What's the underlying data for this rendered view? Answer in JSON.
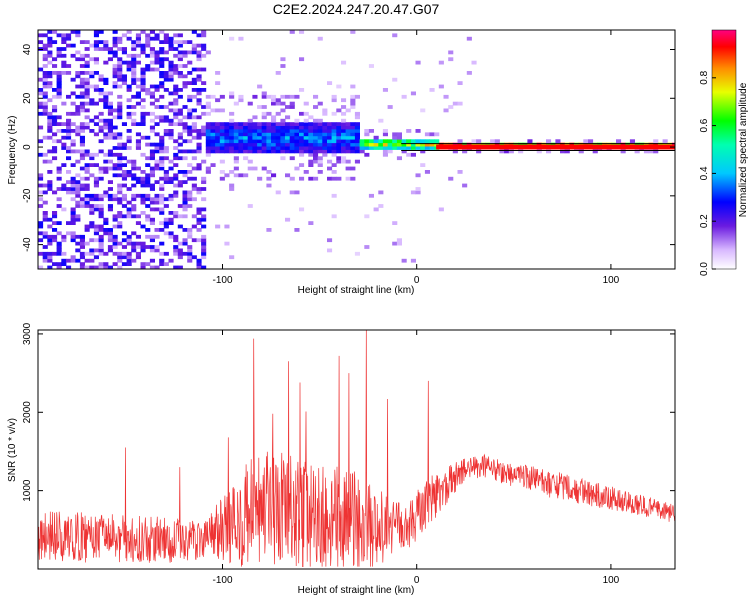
{
  "figure": {
    "title": "C2E2.2024.247.20.47.G07"
  },
  "chart_data": [
    {
      "type": "heatmap",
      "title": "C2E2.2024.247.20.47.G07",
      "xlabel": "Height of straight line (km)",
      "ylabel": "Frequency (Hz)",
      "xlim": [
        -195,
        133
      ],
      "ylim": [
        -50,
        48
      ],
      "x_ticks": [
        -100,
        0,
        100
      ],
      "y_ticks": [
        -40,
        -20,
        0,
        20,
        40
      ],
      "colorbar": {
        "label": "Normalized spectral amplitude",
        "range": [
          0,
          1
        ],
        "ticks": [
          0.0,
          0.2,
          0.4,
          0.6,
          0.8
        ]
      },
      "features": [
        {
          "region": "noise",
          "x_range": [
            -195,
            -110
          ],
          "freq_range": [
            -50,
            48
          ],
          "amplitude": 0.15
        },
        {
          "region": "signal_onset",
          "x_range": [
            -110,
            -30
          ],
          "freq_center": 3,
          "freq_halfwidth": 6,
          "amplitude": 0.35
        },
        {
          "region": "signal_transition",
          "x_range": [
            -30,
            10
          ],
          "freq_center": 0.5,
          "freq_halfwidth": 2,
          "amplitude": 0.7
        },
        {
          "region": "signal_stable",
          "x_range": [
            10,
            133
          ],
          "freq_center": 0,
          "freq_halfwidth": 1,
          "amplitude": 0.95
        }
      ],
      "grid": false
    },
    {
      "type": "line",
      "xlabel": "Height of straight line (km)",
      "ylabel": "SNR (10 * v/v)",
      "xlim": [
        -195,
        133
      ],
      "ylim": [
        0,
        3050
      ],
      "x_ticks": [
        -100,
        0,
        100
      ],
      "y_ticks": [
        1000,
        2000,
        3000
      ],
      "series": [
        {
          "color": "#ee3333",
          "envelope": {
            "x": [
              -195,
              -170,
              -140,
              -115,
              -105,
              -95,
              -85,
              -75,
              -65,
              -55,
              -45,
              -35,
              -25,
              -15,
              -5,
              5,
              15,
              25,
              35,
              50,
              70,
              90,
              110,
              133
            ],
            "mean": [
              420,
              400,
              380,
              360,
              450,
              560,
              700,
              720,
              700,
              640,
              620,
              600,
              560,
              520,
              520,
              850,
              1050,
              1280,
              1310,
              1200,
              1080,
              960,
              850,
              700
            ],
            "spread": [
              320,
              320,
              300,
              280,
              320,
              500,
              750,
              800,
              780,
              720,
              700,
              700,
              560,
              420,
              300,
              320,
              260,
              150,
              150,
              160,
              180,
              160,
              140,
              120
            ]
          },
          "spikes": [
            {
              "x": -150,
              "y": 1550
            },
            {
              "x": -122,
              "y": 1300
            },
            {
              "x": -97,
              "y": 1680
            },
            {
              "x": -84,
              "y": 2940
            },
            {
              "x": -74,
              "y": 1980
            },
            {
              "x": -66,
              "y": 2650
            },
            {
              "x": -60,
              "y": 2380
            },
            {
              "x": -57,
              "y": 2010
            },
            {
              "x": -40,
              "y": 2720
            },
            {
              "x": -35,
              "y": 2500
            },
            {
              "x": -26,
              "y": 3050
            },
            {
              "x": -15,
              "y": 2170
            },
            {
              "x": 6,
              "y": 2400
            }
          ]
        }
      ],
      "grid": false
    }
  ],
  "colors": {
    "snr_line": "#ee3333",
    "stable_band": "#ff0000"
  }
}
